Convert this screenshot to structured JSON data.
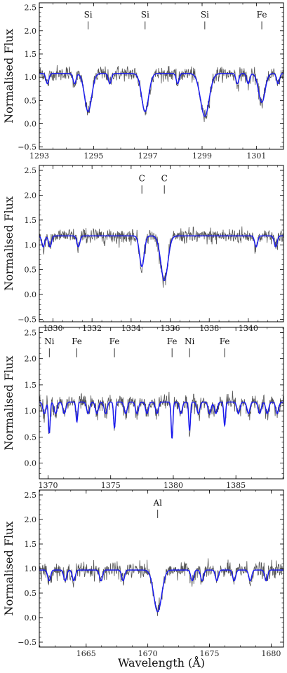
{
  "figure": {
    "ylabel": "Normalised Flux",
    "xlabel": "Wavelength (Å)",
    "observed_color": "#555555",
    "model_color": "#1a1aee"
  },
  "chart_data": [
    {
      "type": "line",
      "ylabel": "Normalised Flux",
      "xlim": [
        1293,
        1302
      ],
      "ylim": [
        -0.55,
        2.6
      ],
      "xticks": [
        1293,
        1295,
        1297,
        1299,
        1301
      ],
      "yticks": [
        -0.5,
        0.0,
        0.5,
        1.0,
        1.5,
        2.0,
        2.5
      ],
      "continuum": 1.08,
      "lines": [
        {
          "label": "Si",
          "x": 1294.8,
          "depth": 0.82,
          "width": 0.13
        },
        {
          "label": "Si",
          "x": 1296.9,
          "depth": 0.82,
          "width": 0.13
        },
        {
          "label": "Si",
          "x": 1299.1,
          "depth": 0.92,
          "width": 0.16
        },
        {
          "label": "Fe",
          "x": 1301.2,
          "depth": 0.62,
          "width": 0.12
        }
      ],
      "minor_lines": [
        1293.3,
        1294.3,
        1295.6,
        1298.1,
        1300.3,
        1300.7,
        1301.8
      ]
    },
    {
      "type": "line",
      "ylabel": "Normalised Flux",
      "xlim": [
        1329.3,
        1341.8
      ],
      "ylim": [
        -0.55,
        2.6
      ],
      "xticks": [
        1330,
        1332,
        1334,
        1336,
        1338,
        1340
      ],
      "yticks": [
        -0.5,
        0.0,
        0.5,
        1.0,
        1.5,
        2.0,
        2.5
      ],
      "continuum": 1.18,
      "lines": [
        {
          "label": "C",
          "x": 1334.55,
          "depth": 0.62,
          "width": 0.12
        },
        {
          "label": "C",
          "x": 1335.7,
          "depth": 0.9,
          "width": 0.18
        }
      ],
      "minor_lines": [
        1329.5,
        1329.85,
        1331.3,
        1340.4,
        1341.4
      ]
    },
    {
      "type": "line",
      "ylabel": "Normalised Flux",
      "xlim": [
        1369.3,
        1388.8
      ],
      "ylim": [
        -0.3,
        2.6
      ],
      "xticks": [
        1370,
        1375,
        1380,
        1385
      ],
      "yticks": [
        0.0,
        0.5,
        1.0,
        1.5,
        2.0,
        2.5
      ],
      "continuum": 1.17,
      "lines": [
        {
          "label": "Ni",
          "x": 1370.1,
          "depth": 0.6,
          "width": 0.07
        },
        {
          "label": "Fe",
          "x": 1372.3,
          "depth": 0.38,
          "width": 0.07
        },
        {
          "label": "Fe",
          "x": 1375.3,
          "depth": 0.5,
          "width": 0.07
        },
        {
          "label": "Fe",
          "x": 1379.9,
          "depth": 0.7,
          "width": 0.07
        },
        {
          "label": "Ni",
          "x": 1381.3,
          "depth": 0.55,
          "width": 0.07
        },
        {
          "label": "Fe",
          "x": 1384.1,
          "depth": 0.45,
          "width": 0.07
        }
      ],
      "minor_lines": [
        1369.7,
        1370.6,
        1371.3,
        1373.2,
        1373.9,
        1374.6,
        1376.2,
        1377.1,
        1377.9,
        1378.7,
        1380.6,
        1382.0,
        1382.9,
        1383.4,
        1385.2,
        1386.0,
        1386.9,
        1387.5,
        1388.3
      ]
    },
    {
      "type": "line",
      "ylabel": "Normalised Flux",
      "xlabel": "Wavelength (Å)",
      "xlim": [
        1661.2,
        1681.0
      ],
      "ylim": [
        -0.6,
        2.6
      ],
      "xticks": [
        1665,
        1670,
        1675,
        1680
      ],
      "yticks": [
        -0.5,
        0.0,
        0.5,
        1.0,
        1.5,
        2.0,
        2.5
      ],
      "continuum": 0.97,
      "lines": [
        {
          "label": "Al",
          "x": 1670.8,
          "depth": 0.85,
          "width": 0.32
        }
      ],
      "minor_lines": [
        1662.0,
        1663.3,
        1664.0,
        1666.2,
        1668.0,
        1673.6,
        1674.4,
        1675.6,
        1677.0,
        1678.3,
        1679.6
      ]
    }
  ]
}
